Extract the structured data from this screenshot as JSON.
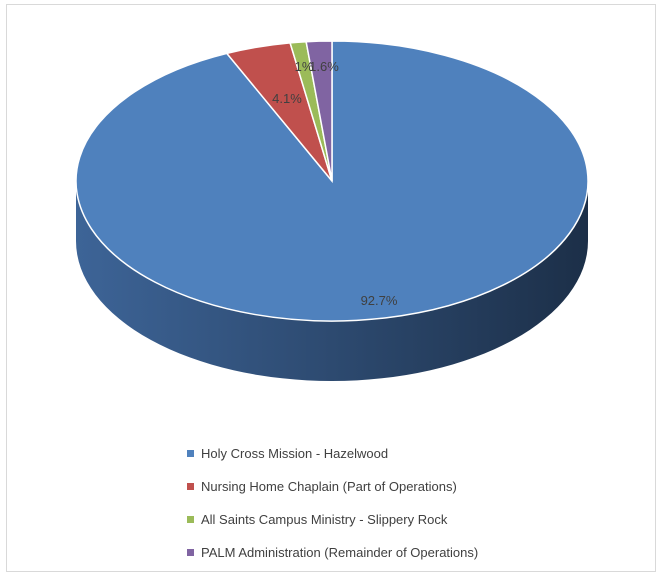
{
  "chart_data": {
    "type": "pie",
    "title": "",
    "categories": [
      "Holy Cross Mission - Hazelwood",
      "Nursing Home Chaplain (Part of Operations)",
      "All Saints Campus Ministry - Slippery Rock",
      "PALM Administration (Remainder of Operations)"
    ],
    "values": [
      92.7,
      4.1,
      1,
      1.6
    ],
    "labels": [
      "92.7%",
      "4.1%",
      "1%",
      "1.6%"
    ],
    "colors": [
      "#4f81bd",
      "#c0504d",
      "#9bbb59",
      "#8064a2"
    ],
    "legend_position": "bottom",
    "style": "3d"
  }
}
